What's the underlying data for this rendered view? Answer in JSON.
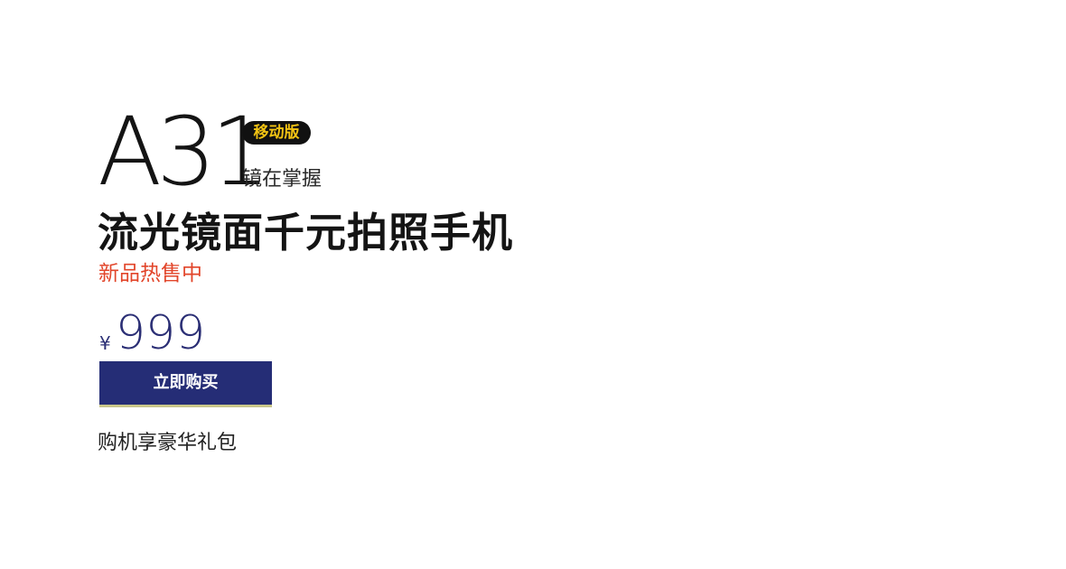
{
  "product": {
    "model_name": "A31",
    "edition_badge": "移动版",
    "tagline": "镜在掌握",
    "headline": "流光镜面千元拍照手机",
    "status": "新品热售中"
  },
  "pricing": {
    "currency_symbol": "¥",
    "price": "999"
  },
  "cta": {
    "buy_label": "立即购买"
  },
  "promo": {
    "gift_note": "购机享豪华礼包"
  },
  "colors": {
    "brand_navy": "#252d76",
    "price_blue": "#2b2f75",
    "sale_red": "#e2452a",
    "badge_yellow": "#f2c313",
    "badge_black": "#111111"
  }
}
